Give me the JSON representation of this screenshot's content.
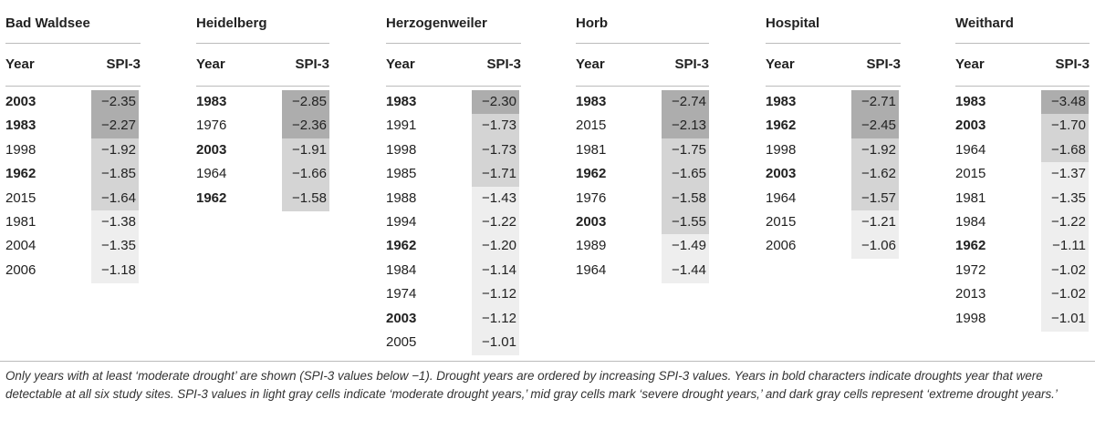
{
  "colors": {
    "light": "#eeeeee",
    "mid": "#d4d4d4",
    "dark": "#adadad"
  },
  "col_headers": {
    "year": "Year",
    "spi": "SPI-3"
  },
  "sites": [
    {
      "name": "Bad Waldsee",
      "rows": [
        {
          "year": "2003",
          "bold": true,
          "spi": "−2.35",
          "level": "dark"
        },
        {
          "year": "1983",
          "bold": true,
          "spi": "−2.27",
          "level": "dark"
        },
        {
          "year": "1998",
          "bold": false,
          "spi": "−1.92",
          "level": "mid"
        },
        {
          "year": "1962",
          "bold": true,
          "spi": "−1.85",
          "level": "mid"
        },
        {
          "year": "2015",
          "bold": false,
          "spi": "−1.64",
          "level": "mid"
        },
        {
          "year": "1981",
          "bold": false,
          "spi": "−1.38",
          "level": "light"
        },
        {
          "year": "2004",
          "bold": false,
          "spi": "−1.35",
          "level": "light"
        },
        {
          "year": "2006",
          "bold": false,
          "spi": "−1.18",
          "level": "light"
        }
      ]
    },
    {
      "name": "Heidelberg",
      "rows": [
        {
          "year": "1983",
          "bold": true,
          "spi": "−2.85",
          "level": "dark"
        },
        {
          "year": "1976",
          "bold": false,
          "spi": "−2.36",
          "level": "dark"
        },
        {
          "year": "2003",
          "bold": true,
          "spi": "−1.91",
          "level": "mid"
        },
        {
          "year": "1964",
          "bold": false,
          "spi": "−1.66",
          "level": "mid"
        },
        {
          "year": "1962",
          "bold": true,
          "spi": "−1.58",
          "level": "mid"
        }
      ]
    },
    {
      "name": "Herzogenweiler",
      "rows": [
        {
          "year": "1983",
          "bold": true,
          "spi": "−2.30",
          "level": "dark"
        },
        {
          "year": "1991",
          "bold": false,
          "spi": "−1.73",
          "level": "mid"
        },
        {
          "year": "1998",
          "bold": false,
          "spi": "−1.73",
          "level": "mid"
        },
        {
          "year": "1985",
          "bold": false,
          "spi": "−1.71",
          "level": "mid"
        },
        {
          "year": "1988",
          "bold": false,
          "spi": "−1.43",
          "level": "light"
        },
        {
          "year": "1994",
          "bold": false,
          "spi": "−1.22",
          "level": "light"
        },
        {
          "year": "1962",
          "bold": true,
          "spi": "−1.20",
          "level": "light"
        },
        {
          "year": "1984",
          "bold": false,
          "spi": "−1.14",
          "level": "light"
        },
        {
          "year": "1974",
          "bold": false,
          "spi": "−1.12",
          "level": "light"
        },
        {
          "year": "2003",
          "bold": true,
          "spi": "−1.12",
          "level": "light"
        },
        {
          "year": "2005",
          "bold": false,
          "spi": "−1.01",
          "level": "light"
        }
      ]
    },
    {
      "name": "Horb",
      "rows": [
        {
          "year": "1983",
          "bold": true,
          "spi": "−2.74",
          "level": "dark"
        },
        {
          "year": "2015",
          "bold": false,
          "spi": "−2.13",
          "level": "dark"
        },
        {
          "year": "1981",
          "bold": false,
          "spi": "−1.75",
          "level": "mid"
        },
        {
          "year": "1962",
          "bold": true,
          "spi": "−1.65",
          "level": "mid"
        },
        {
          "year": "1976",
          "bold": false,
          "spi": "−1.58",
          "level": "mid"
        },
        {
          "year": "2003",
          "bold": true,
          "spi": "−1.55",
          "level": "mid"
        },
        {
          "year": "1989",
          "bold": false,
          "spi": "−1.49",
          "level": "light"
        },
        {
          "year": "1964",
          "bold": false,
          "spi": "−1.44",
          "level": "light"
        }
      ]
    },
    {
      "name": "Hospital",
      "rows": [
        {
          "year": "1983",
          "bold": true,
          "spi": "−2.71",
          "level": "dark"
        },
        {
          "year": "1962",
          "bold": true,
          "spi": "−2.45",
          "level": "dark"
        },
        {
          "year": "1998",
          "bold": false,
          "spi": "−1.92",
          "level": "mid"
        },
        {
          "year": "2003",
          "bold": true,
          "spi": "−1.62",
          "level": "mid"
        },
        {
          "year": "1964",
          "bold": false,
          "spi": "−1.57",
          "level": "mid"
        },
        {
          "year": "2015",
          "bold": false,
          "spi": "−1.21",
          "level": "light"
        },
        {
          "year": "2006",
          "bold": false,
          "spi": "−1.06",
          "level": "light"
        }
      ]
    },
    {
      "name": "Weithard",
      "rows": [
        {
          "year": "1983",
          "bold": true,
          "spi": "−3.48",
          "level": "dark"
        },
        {
          "year": "2003",
          "bold": true,
          "spi": "−1.70",
          "level": "mid"
        },
        {
          "year": "1964",
          "bold": false,
          "spi": "−1.68",
          "level": "mid"
        },
        {
          "year": "2015",
          "bold": false,
          "spi": "−1.37",
          "level": "light"
        },
        {
          "year": "1981",
          "bold": false,
          "spi": "−1.35",
          "level": "light"
        },
        {
          "year": "1984",
          "bold": false,
          "spi": "−1.22",
          "level": "light"
        },
        {
          "year": "1962",
          "bold": true,
          "spi": "−1.11",
          "level": "light"
        },
        {
          "year": "1972",
          "bold": false,
          "spi": "−1.02",
          "level": "light"
        },
        {
          "year": "2013",
          "bold": false,
          "spi": "−1.02",
          "level": "light"
        },
        {
          "year": "1998",
          "bold": false,
          "spi": "−1.01",
          "level": "light"
        }
      ]
    }
  ],
  "caption": "Only years with at least ‘moderate drought’ are shown (SPI-3 values below −1). Drought years are ordered by increasing SPI-3 values. Years in bold characters indicate droughts year that were detectable at all six study sites. SPI-3 values in light gray cells indicate ‘moderate drought years,’ mid gray cells mark ‘severe drought years,’ and dark gray cells represent ‘extreme drought years.’"
}
